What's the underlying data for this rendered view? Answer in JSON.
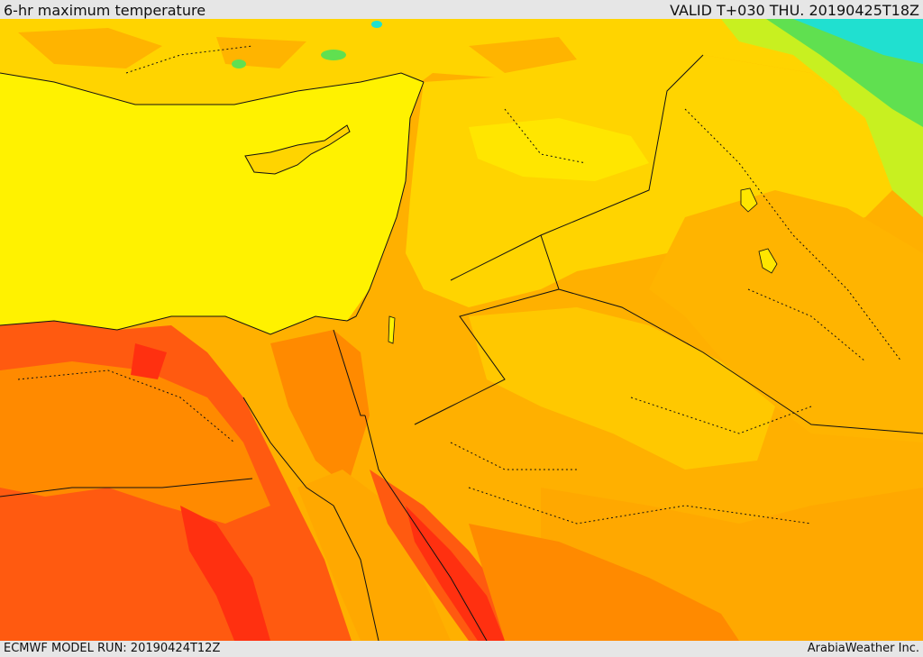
{
  "header": {
    "title": "6-hr maximum temperature",
    "valid": "VALID T+030 THU. 20190425T18Z"
  },
  "footer": {
    "model_run": "ECMWF MODEL RUN: 20190424T12Z",
    "credit": "ArabiaWeather Inc."
  },
  "map": {
    "region": "Eastern Mediterranean and Middle East",
    "colors": {
      "sea": "#fff200",
      "yellow_warm": "#ffe000",
      "orange_light": "#ffc800",
      "orange": "#ffa800",
      "orange_dark": "#ff8a00",
      "red_orange": "#ff5a10",
      "red": "#ff3010",
      "green_light": "#c8f020",
      "green": "#60e050",
      "cyan": "#20e0d0",
      "border": "#111111"
    }
  }
}
